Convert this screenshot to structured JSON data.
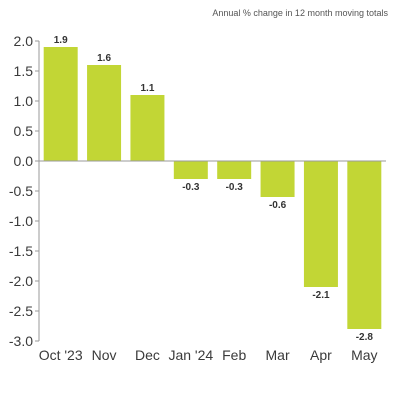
{
  "chart_data": {
    "type": "bar",
    "title": "",
    "subtitle": "Annual % change in 12 month moving totals",
    "xlabel": "",
    "ylabel": "",
    "categories": [
      "Oct '23",
      "Nov",
      "Dec",
      "Jan '24",
      "Feb",
      "Mar",
      "Apr",
      "May"
    ],
    "values": [
      1.9,
      1.6,
      1.1,
      -0.3,
      -0.3,
      -0.6,
      -2.1,
      -2.8
    ],
    "data_labels": [
      "1.9",
      "1.6",
      "1.1",
      "-0.3",
      "-0.3",
      "-0.6",
      "-2.1",
      "-2.8"
    ],
    "ylim": [
      -3.0,
      2.0
    ],
    "yticks": [
      2.0,
      1.5,
      1.0,
      0.5,
      0.0,
      -0.5,
      -1.0,
      -1.5,
      -2.0,
      -2.5,
      -3.0
    ],
    "ytick_labels": [
      "2.0",
      "1.5",
      "1.0",
      "0.5",
      "0.0",
      "-0.5",
      "-1.0",
      "-1.5",
      "-2.0",
      "-2.5",
      "-3.0"
    ],
    "grid": false,
    "legend": "none",
    "bar_color": "#c2d635",
    "axis_color": "#9a9a9a"
  }
}
